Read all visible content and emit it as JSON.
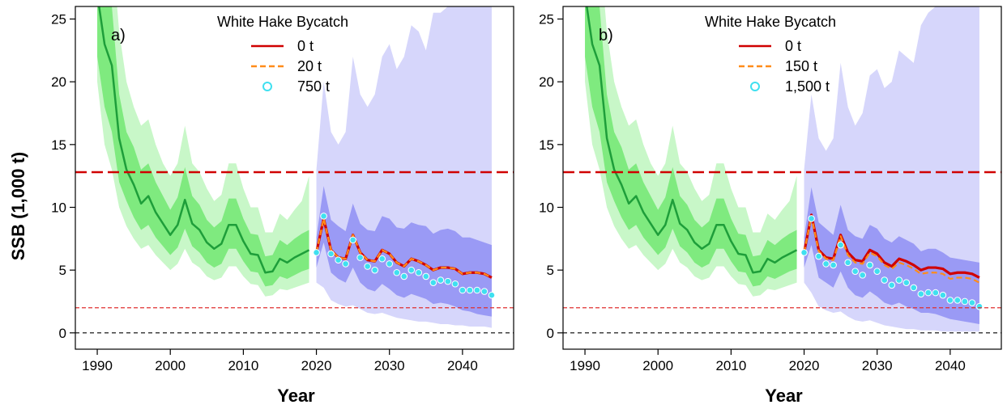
{
  "figure": {
    "ylabel": "SSB (1,000 t)"
  },
  "colors": {
    "hist_line": "#1E9E3A",
    "hist_band_inner": "#7FEA7F",
    "hist_band_outer": "#C8F7C8",
    "proj_band_inner": "#9A9AF5",
    "proj_band_outer": "#D6D6FB",
    "line_0t": "#D00000",
    "line_mid": "#FF8C1A",
    "points_high": "#3FE0F0",
    "ref_high": "#D00000",
    "ref_low": "#E03030",
    "ref_zero": "#000000"
  },
  "chart_data": [
    {
      "type": "line",
      "panel_label": "a)",
      "xlabel": "Year",
      "ylabel": "SSB (1,000 t)",
      "xlim": [
        1987,
        2047
      ],
      "ylim": [
        -1.3,
        26
      ],
      "x_ticks": [
        1990,
        2000,
        2010,
        2020,
        2030,
        2040
      ],
      "y_ticks": [
        0,
        5,
        10,
        15,
        20,
        25
      ],
      "legend": {
        "title": "White Hake Bycatch",
        "position": "top-center",
        "entries": [
          "0 t",
          "20 t",
          "750 t"
        ]
      },
      "reference_lines": [
        12.8,
        2.0,
        0
      ],
      "historical": {
        "x": [
          1990,
          1991,
          1992,
          1993,
          1994,
          1995,
          1996,
          1997,
          1998,
          1999,
          2000,
          2001,
          2002,
          2003,
          2004,
          2005,
          2006,
          2007,
          2008,
          2009,
          2010,
          2011,
          2012,
          2013,
          2014,
          2015,
          2016,
          2017,
          2018,
          2019
        ],
        "median": [
          27,
          23,
          21.3,
          15.5,
          13,
          11.8,
          10.3,
          10.9,
          9.6,
          8.7,
          7.8,
          8.6,
          10.6,
          8.7,
          8.2,
          7.2,
          6.7,
          7.1,
          8.6,
          8.6,
          7.3,
          6.3,
          6.2,
          4.8,
          4.9,
          5.9,
          5.6,
          6,
          6.3,
          6.6
        ],
        "inner_low": [
          22,
          18,
          16,
          12,
          10.5,
          9.2,
          8.2,
          8.6,
          7.6,
          6.9,
          6.2,
          6.8,
          8.3,
          6.9,
          6.4,
          5.6,
          5.2,
          5.5,
          6.7,
          6.7,
          5.7,
          4.9,
          4.8,
          3.7,
          3.8,
          4.5,
          4.3,
          4.6,
          4.9,
          5.1
        ],
        "inner_high": [
          32,
          28,
          26,
          19,
          16,
          14.8,
          13,
          13.5,
          12,
          10.9,
          9.8,
          10.8,
          13.2,
          10.9,
          10.2,
          9,
          8.4,
          8.9,
          10.7,
          10.7,
          9.1,
          7.9,
          7.8,
          6.1,
          6.2,
          7.4,
          7,
          7.5,
          7.9,
          8.2
        ],
        "outer_low": [
          20,
          15,
          13,
          10,
          8.5,
          7.5,
          6.7,
          7,
          6.2,
          5.6,
          5,
          5.5,
          6.7,
          5.6,
          5.2,
          4.5,
          4.2,
          4.4,
          5.3,
          5.3,
          4.5,
          3.9,
          3.8,
          2.9,
          3,
          3.5,
          3.4,
          3.6,
          3.8,
          4
        ],
        "outer_high": [
          35,
          33,
          31,
          24,
          20,
          18,
          16.5,
          17,
          15,
          13.5,
          12.5,
          13.5,
          16.5,
          13.5,
          12.8,
          11.5,
          10.5,
          11,
          13.5,
          13.5,
          11.5,
          10,
          10,
          8,
          8,
          9.5,
          9,
          9.8,
          10.5,
          12.5
        ]
      },
      "projection": {
        "x": [
          2020,
          2021,
          2022,
          2023,
          2024,
          2025,
          2026,
          2027,
          2028,
          2029,
          2030,
          2031,
          2032,
          2033,
          2034,
          2035,
          2036,
          2037,
          2038,
          2039,
          2040,
          2041,
          2042,
          2043,
          2044
        ],
        "inner_low": [
          5.2,
          7.2,
          4.8,
          4.3,
          4,
          5.2,
          4,
          3.5,
          3.3,
          3.9,
          3.5,
          3,
          2.8,
          3.1,
          2.9,
          2.7,
          2.3,
          2.4,
          2.3,
          2.1,
          1.8,
          1.7,
          1.5,
          1.4,
          1.3
        ],
        "inner_high": [
          7.6,
          11.7,
          9,
          8.5,
          8.1,
          10.3,
          8.7,
          8.2,
          8.1,
          9.3,
          9.1,
          8.4,
          8.3,
          8.8,
          8.6,
          8.5,
          7.9,
          8.2,
          8.3,
          8.1,
          7.6,
          7.6,
          7.4,
          7.2,
          7
        ],
        "outer_low": [
          4,
          3.6,
          2.6,
          2.3,
          2.1,
          2.2,
          1.9,
          1.6,
          1.5,
          1.6,
          1.4,
          1.2,
          1.1,
          1,
          0.9,
          0.9,
          0.8,
          0.7,
          0.7,
          0.6,
          0.6,
          0.5,
          0.5,
          0.5,
          0.4
        ],
        "outer_high": [
          13,
          20,
          16,
          15,
          16,
          22,
          19,
          18,
          19,
          22,
          23,
          21,
          22,
          24.5,
          24,
          22.5,
          25.5,
          25.5,
          26,
          27,
          28,
          28,
          28,
          28,
          28
        ]
      },
      "series": [
        {
          "name": "0 t",
          "style": "solid",
          "values": [
            6.4,
            9.1,
            6.6,
            6,
            5.9,
            7.8,
            6.4,
            5.8,
            5.7,
            6.6,
            6.3,
            5.6,
            5.3,
            5.9,
            5.7,
            5.4,
            5,
            5.2,
            5.2,
            5.1,
            4.7,
            4.8,
            4.8,
            4.7,
            4.4
          ]
        },
        {
          "name": "20 t",
          "style": "dashed",
          "values": [
            6.4,
            9.1,
            6.6,
            6,
            5.9,
            7.8,
            6.4,
            5.8,
            5.7,
            6.6,
            6.3,
            5.6,
            5.3,
            5.9,
            5.7,
            5.4,
            5,
            5.2,
            5.2,
            5.1,
            4.7,
            4.8,
            4.8,
            4.7,
            4.4
          ]
        },
        {
          "name": "750 t",
          "style": "points",
          "values": [
            6.4,
            9.3,
            6.3,
            5.8,
            5.5,
            7.4,
            6,
            5.3,
            5,
            5.9,
            5.5,
            4.8,
            4.5,
            5,
            4.8,
            4.5,
            4,
            4.2,
            4.1,
            3.9,
            3.4,
            3.4,
            3.4,
            3.3,
            3
          ]
        }
      ]
    },
    {
      "type": "line",
      "panel_label": "b)",
      "xlabel": "Year",
      "ylabel": "",
      "xlim": [
        1987,
        2047
      ],
      "ylim": [
        -1.3,
        26
      ],
      "x_ticks": [
        1990,
        2000,
        2010,
        2020,
        2030,
        2040
      ],
      "y_ticks": [
        0,
        5,
        10,
        15,
        20,
        25
      ],
      "legend": {
        "title": "White Hake Bycatch",
        "position": "top-center",
        "entries": [
          "0 t",
          "150 t",
          "1,500 t"
        ]
      },
      "reference_lines": [
        12.8,
        2.0,
        0
      ],
      "historical": {
        "x": [
          1990,
          1991,
          1992,
          1993,
          1994,
          1995,
          1996,
          1997,
          1998,
          1999,
          2000,
          2001,
          2002,
          2003,
          2004,
          2005,
          2006,
          2007,
          2008,
          2009,
          2010,
          2011,
          2012,
          2013,
          2014,
          2015,
          2016,
          2017,
          2018,
          2019
        ],
        "median": [
          27,
          23,
          21.3,
          15.5,
          13,
          11.8,
          10.3,
          10.9,
          9.6,
          8.7,
          7.8,
          8.6,
          10.6,
          8.7,
          8.2,
          7.2,
          6.7,
          7.1,
          8.6,
          8.6,
          7.3,
          6.3,
          6.2,
          4.8,
          4.9,
          5.9,
          5.6,
          6,
          6.3,
          6.6
        ],
        "inner_low": [
          22,
          18,
          16,
          12,
          10.5,
          9.2,
          8.2,
          8.6,
          7.6,
          6.9,
          6.2,
          6.8,
          8.3,
          6.9,
          6.4,
          5.6,
          5.2,
          5.5,
          6.7,
          6.7,
          5.7,
          4.9,
          4.8,
          3.7,
          3.8,
          4.5,
          4.3,
          4.6,
          4.9,
          5.1
        ],
        "inner_high": [
          32,
          28,
          26,
          19,
          16,
          14.8,
          13,
          13.5,
          12,
          10.9,
          9.8,
          10.8,
          13.2,
          10.9,
          10.2,
          9,
          8.4,
          8.9,
          10.7,
          10.7,
          9.1,
          7.9,
          7.8,
          6.1,
          6.2,
          7.4,
          7,
          7.5,
          7.9,
          8.2
        ],
        "outer_low": [
          20,
          15,
          13,
          10,
          8.5,
          7.5,
          6.7,
          7,
          6.2,
          5.6,
          5,
          5.5,
          6.7,
          5.6,
          5.2,
          4.5,
          4.2,
          4.4,
          5.3,
          5.3,
          4.5,
          3.9,
          3.8,
          2.9,
          3,
          3.5,
          3.4,
          3.6,
          3.8,
          4
        ],
        "outer_high": [
          35,
          33,
          31,
          24,
          20,
          18,
          16.5,
          17,
          15,
          13.5,
          12.5,
          13.5,
          16.5,
          13.5,
          12.8,
          11.5,
          10.5,
          11,
          13.5,
          13.5,
          11.5,
          10,
          10,
          8,
          8,
          9.5,
          9,
          9.8,
          10.5,
          12.5
        ]
      },
      "projection": {
        "x": [
          2020,
          2021,
          2022,
          2023,
          2024,
          2025,
          2026,
          2027,
          2028,
          2029,
          2030,
          2031,
          2032,
          2033,
          2034,
          2035,
          2036,
          2037,
          2038,
          2039,
          2040,
          2041,
          2042,
          2043,
          2044
        ],
        "inner_low": [
          5.2,
          7,
          4.4,
          4,
          3.6,
          4.9,
          3.6,
          3,
          2.8,
          3.3,
          2.9,
          2.4,
          2.2,
          2.4,
          2.1,
          1.9,
          1.6,
          1.6,
          1.5,
          1.3,
          1.1,
          1,
          0.9,
          0.8,
          0.7
        ],
        "inner_high": [
          7.6,
          11.6,
          8.8,
          8.3,
          7.8,
          10.2,
          8.2,
          7.7,
          7.5,
          8.6,
          8.3,
          7.5,
          7.2,
          7.7,
          7.4,
          7.1,
          6.5,
          6.7,
          6.7,
          6.4,
          6,
          5.9,
          5.8,
          5.7,
          5.6
        ],
        "outer_low": [
          4,
          3.2,
          2.1,
          1.8,
          1.6,
          1.7,
          1.3,
          1,
          0.9,
          1,
          0.8,
          0.6,
          0.5,
          0.4,
          0.3,
          0.3,
          0.2,
          0.2,
          0.2,
          0.1,
          0.1,
          0.1,
          0.1,
          0.1,
          0.1
        ],
        "outer_high": [
          13,
          19,
          15.5,
          14.5,
          15.5,
          21.5,
          18,
          16.5,
          17.5,
          20.5,
          21,
          19.5,
          20,
          22.5,
          22,
          21.5,
          24.5,
          25.5,
          26,
          27,
          28,
          28,
          28,
          28,
          28
        ]
      },
      "series": [
        {
          "name": "0 t",
          "style": "solid",
          "values": [
            6.4,
            9.4,
            6.6,
            6,
            5.9,
            7.8,
            6.4,
            5.8,
            5.7,
            6.6,
            6.3,
            5.6,
            5.3,
            5.9,
            5.7,
            5.4,
            5,
            5.2,
            5.2,
            5.1,
            4.7,
            4.8,
            4.8,
            4.7,
            4.4
          ]
        },
        {
          "name": "150 t",
          "style": "dashed",
          "values": [
            6.4,
            9.3,
            6.5,
            5.9,
            5.8,
            7.7,
            6.2,
            5.6,
            5.5,
            6.4,
            6.1,
            5.4,
            5.1,
            5.6,
            5.4,
            5.1,
            4.7,
            4.8,
            4.8,
            4.7,
            4.3,
            4.4,
            4.4,
            4.3,
            4
          ]
        },
        {
          "name": "1,500 t",
          "style": "points",
          "values": [
            6.4,
            9.1,
            6.1,
            5.5,
            5.4,
            7,
            5.6,
            4.9,
            4.6,
            5.4,
            4.9,
            4.2,
            3.8,
            4.2,
            4,
            3.6,
            3.1,
            3.2,
            3.2,
            3,
            2.6,
            2.6,
            2.5,
            2.4,
            2.1
          ]
        }
      ]
    }
  ]
}
